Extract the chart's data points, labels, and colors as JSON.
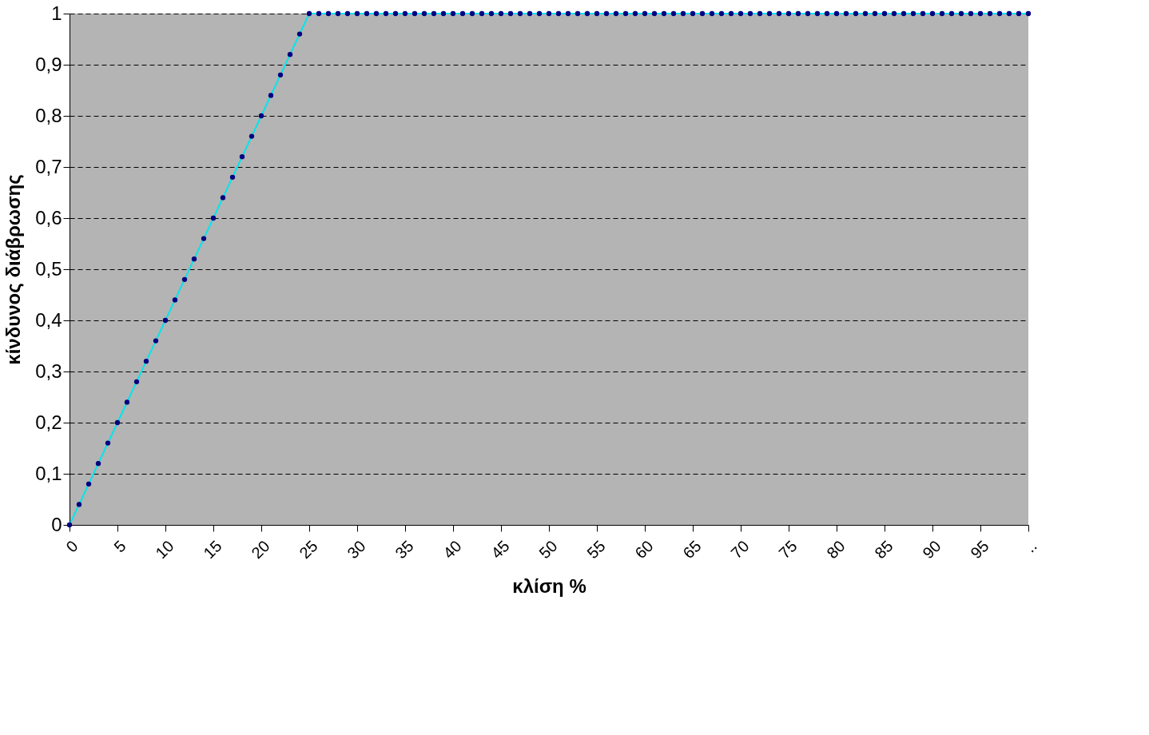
{
  "chart_data": {
    "type": "line",
    "xlabel": "κλίση %",
    "ylabel": "κίνδυνος διάβρωσης",
    "categories": [
      "0",
      null,
      null,
      null,
      null,
      "5",
      null,
      null,
      null,
      null,
      "10",
      null,
      null,
      null,
      null,
      "15",
      null,
      null,
      null,
      null,
      "20",
      null,
      null,
      null,
      null,
      "25",
      null,
      null,
      null,
      null,
      "30",
      null,
      null,
      null,
      null,
      "35",
      null,
      null,
      null,
      null,
      "40",
      null,
      null,
      null,
      null,
      "45",
      null,
      null,
      null,
      null,
      "50",
      null,
      null,
      null,
      null,
      "55",
      null,
      null,
      null,
      null,
      "60",
      null,
      null,
      null,
      null,
      "65",
      null,
      null,
      null,
      null,
      "70",
      null,
      null,
      null,
      null,
      "75",
      null,
      null,
      null,
      null,
      "80",
      null,
      null,
      null,
      null,
      "85",
      null,
      null,
      null,
      null,
      "90",
      null,
      null,
      null,
      null,
      "95",
      null,
      null,
      null,
      null,
      ".."
    ],
    "series": [
      {
        "color": "#000080",
        "values": [
          0,
          0.04,
          0.08,
          0.12,
          0.16,
          0.2,
          0.24,
          0.28,
          0.32,
          0.36,
          0.4,
          0.44,
          0.48,
          0.52,
          0.56,
          0.6,
          0.64,
          0.68,
          0.72,
          0.76,
          0.8,
          0.84,
          0.88,
          0.92,
          0.96,
          1,
          1,
          1,
          1,
          1,
          1,
          1,
          1,
          1,
          1,
          1,
          1,
          1,
          1,
          1,
          1,
          1,
          1,
          1,
          1,
          1,
          1,
          1,
          1,
          1,
          1,
          1,
          1,
          1,
          1,
          1,
          1,
          1,
          1,
          1,
          1,
          1,
          1,
          1,
          1,
          1,
          1,
          1,
          1,
          1,
          1,
          1,
          1,
          1,
          1,
          1,
          1,
          1,
          1,
          1,
          1,
          1,
          1,
          1,
          1,
          1,
          1,
          1,
          1,
          1,
          1,
          1,
          1,
          1,
          1,
          1,
          1,
          1,
          1,
          1,
          1
        ]
      }
    ],
    "ylim": [
      0,
      1
    ],
    "yticks": [
      0,
      {
        "value": 0.1,
        "label": "0,1"
      },
      {
        "value": 0.2,
        "label": "0,2"
      },
      {
        "value": 0.3,
        "label": "0,3"
      },
      {
        "value": 0.4,
        "label": "0,4"
      },
      {
        "value": 0.5,
        "label": "0,5"
      },
      {
        "value": 0.6,
        "label": "0,6"
      },
      {
        "value": 0.7,
        "label": "0,7"
      },
      {
        "value": 0.8,
        "label": "0,8"
      },
      {
        "value": 0.9,
        "label": "0,9"
      },
      1
    ],
    "grid": "y",
    "marker": "circle",
    "line_style": "solid"
  }
}
